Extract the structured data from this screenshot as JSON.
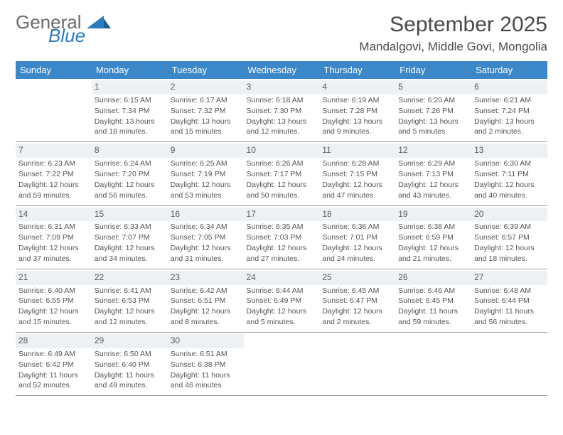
{
  "logo": {
    "word1": "General",
    "word2": "Blue"
  },
  "title": "September 2025",
  "location": "Mandalgovi, Middle Govi, Mongolia",
  "colors": {
    "header_bg": "#3b87c8",
    "header_text": "#ffffff",
    "daynum_bg": "#eef1f3",
    "text": "#555555",
    "logo_blue": "#2b7bbf",
    "logo_gray": "#6a6a6a",
    "rule": "#9a9a9a"
  },
  "dayNames": [
    "Sunday",
    "Monday",
    "Tuesday",
    "Wednesday",
    "Thursday",
    "Friday",
    "Saturday"
  ],
  "weeks": [
    [
      {
        "blank": true
      },
      {
        "n": "1",
        "sr": "Sunrise: 6:15 AM",
        "ss": "Sunset: 7:34 PM",
        "dl1": "Daylight: 13 hours",
        "dl2": "and 18 minutes."
      },
      {
        "n": "2",
        "sr": "Sunrise: 6:17 AM",
        "ss": "Sunset: 7:32 PM",
        "dl1": "Daylight: 13 hours",
        "dl2": "and 15 minutes."
      },
      {
        "n": "3",
        "sr": "Sunrise: 6:18 AM",
        "ss": "Sunset: 7:30 PM",
        "dl1": "Daylight: 13 hours",
        "dl2": "and 12 minutes."
      },
      {
        "n": "4",
        "sr": "Sunrise: 6:19 AM",
        "ss": "Sunset: 7:28 PM",
        "dl1": "Daylight: 13 hours",
        "dl2": "and 9 minutes."
      },
      {
        "n": "5",
        "sr": "Sunrise: 6:20 AM",
        "ss": "Sunset: 7:26 PM",
        "dl1": "Daylight: 13 hours",
        "dl2": "and 5 minutes."
      },
      {
        "n": "6",
        "sr": "Sunrise: 6:21 AM",
        "ss": "Sunset: 7:24 PM",
        "dl1": "Daylight: 13 hours",
        "dl2": "and 2 minutes."
      }
    ],
    [
      {
        "n": "7",
        "sr": "Sunrise: 6:23 AM",
        "ss": "Sunset: 7:22 PM",
        "dl1": "Daylight: 12 hours",
        "dl2": "and 59 minutes."
      },
      {
        "n": "8",
        "sr": "Sunrise: 6:24 AM",
        "ss": "Sunset: 7:20 PM",
        "dl1": "Daylight: 12 hours",
        "dl2": "and 56 minutes."
      },
      {
        "n": "9",
        "sr": "Sunrise: 6:25 AM",
        "ss": "Sunset: 7:19 PM",
        "dl1": "Daylight: 12 hours",
        "dl2": "and 53 minutes."
      },
      {
        "n": "10",
        "sr": "Sunrise: 6:26 AM",
        "ss": "Sunset: 7:17 PM",
        "dl1": "Daylight: 12 hours",
        "dl2": "and 50 minutes."
      },
      {
        "n": "11",
        "sr": "Sunrise: 6:28 AM",
        "ss": "Sunset: 7:15 PM",
        "dl1": "Daylight: 12 hours",
        "dl2": "and 47 minutes."
      },
      {
        "n": "12",
        "sr": "Sunrise: 6:29 AM",
        "ss": "Sunset: 7:13 PM",
        "dl1": "Daylight: 12 hours",
        "dl2": "and 43 minutes."
      },
      {
        "n": "13",
        "sr": "Sunrise: 6:30 AM",
        "ss": "Sunset: 7:11 PM",
        "dl1": "Daylight: 12 hours",
        "dl2": "and 40 minutes."
      }
    ],
    [
      {
        "n": "14",
        "sr": "Sunrise: 6:31 AM",
        "ss": "Sunset: 7:09 PM",
        "dl1": "Daylight: 12 hours",
        "dl2": "and 37 minutes."
      },
      {
        "n": "15",
        "sr": "Sunrise: 6:33 AM",
        "ss": "Sunset: 7:07 PM",
        "dl1": "Daylight: 12 hours",
        "dl2": "and 34 minutes."
      },
      {
        "n": "16",
        "sr": "Sunrise: 6:34 AM",
        "ss": "Sunset: 7:05 PM",
        "dl1": "Daylight: 12 hours",
        "dl2": "and 31 minutes."
      },
      {
        "n": "17",
        "sr": "Sunrise: 6:35 AM",
        "ss": "Sunset: 7:03 PM",
        "dl1": "Daylight: 12 hours",
        "dl2": "and 27 minutes."
      },
      {
        "n": "18",
        "sr": "Sunrise: 6:36 AM",
        "ss": "Sunset: 7:01 PM",
        "dl1": "Daylight: 12 hours",
        "dl2": "and 24 minutes."
      },
      {
        "n": "19",
        "sr": "Sunrise: 6:38 AM",
        "ss": "Sunset: 6:59 PM",
        "dl1": "Daylight: 12 hours",
        "dl2": "and 21 minutes."
      },
      {
        "n": "20",
        "sr": "Sunrise: 6:39 AM",
        "ss": "Sunset: 6:57 PM",
        "dl1": "Daylight: 12 hours",
        "dl2": "and 18 minutes."
      }
    ],
    [
      {
        "n": "21",
        "sr": "Sunrise: 6:40 AM",
        "ss": "Sunset: 6:55 PM",
        "dl1": "Daylight: 12 hours",
        "dl2": "and 15 minutes."
      },
      {
        "n": "22",
        "sr": "Sunrise: 6:41 AM",
        "ss": "Sunset: 6:53 PM",
        "dl1": "Daylight: 12 hours",
        "dl2": "and 12 minutes."
      },
      {
        "n": "23",
        "sr": "Sunrise: 6:42 AM",
        "ss": "Sunset: 6:51 PM",
        "dl1": "Daylight: 12 hours",
        "dl2": "and 8 minutes."
      },
      {
        "n": "24",
        "sr": "Sunrise: 6:44 AM",
        "ss": "Sunset: 6:49 PM",
        "dl1": "Daylight: 12 hours",
        "dl2": "and 5 minutes."
      },
      {
        "n": "25",
        "sr": "Sunrise: 6:45 AM",
        "ss": "Sunset: 6:47 PM",
        "dl1": "Daylight: 12 hours",
        "dl2": "and 2 minutes."
      },
      {
        "n": "26",
        "sr": "Sunrise: 6:46 AM",
        "ss": "Sunset: 6:45 PM",
        "dl1": "Daylight: 11 hours",
        "dl2": "and 59 minutes."
      },
      {
        "n": "27",
        "sr": "Sunrise: 6:48 AM",
        "ss": "Sunset: 6:44 PM",
        "dl1": "Daylight: 11 hours",
        "dl2": "and 56 minutes."
      }
    ],
    [
      {
        "n": "28",
        "sr": "Sunrise: 6:49 AM",
        "ss": "Sunset: 6:42 PM",
        "dl1": "Daylight: 11 hours",
        "dl2": "and 52 minutes."
      },
      {
        "n": "29",
        "sr": "Sunrise: 6:50 AM",
        "ss": "Sunset: 6:40 PM",
        "dl1": "Daylight: 11 hours",
        "dl2": "and 49 minutes."
      },
      {
        "n": "30",
        "sr": "Sunrise: 6:51 AM",
        "ss": "Sunset: 6:38 PM",
        "dl1": "Daylight: 11 hours",
        "dl2": "and 46 minutes."
      },
      {
        "blank": true
      },
      {
        "blank": true
      },
      {
        "blank": true
      },
      {
        "blank": true
      }
    ]
  ]
}
